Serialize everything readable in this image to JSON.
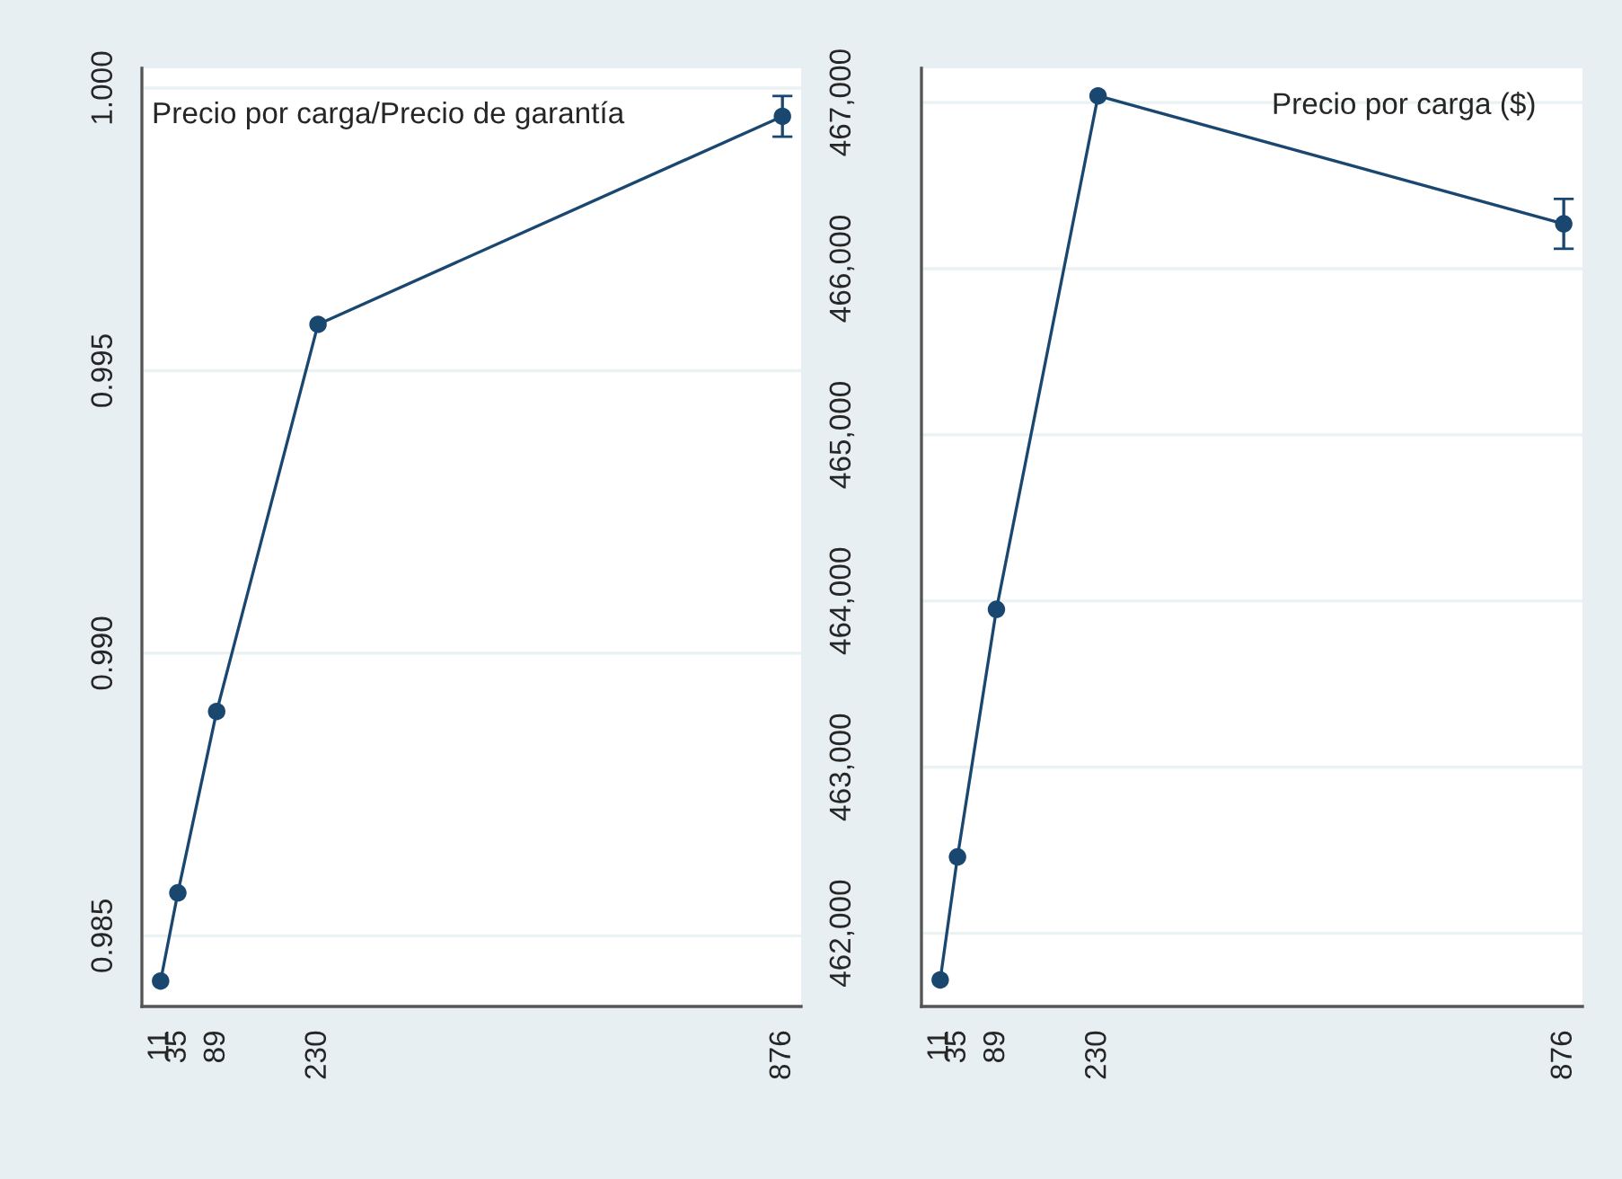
{
  "chart_data": [
    {
      "type": "line",
      "title": "Precio por carga/Precio de garantía",
      "x": [
        11,
        35,
        89,
        230,
        876
      ],
      "series": [
        {
          "color": "#1a476f",
          "values": [
            0.9842,
            0.98576,
            0.98897,
            0.99582,
            0.9995
          ],
          "errors": [
            null,
            null,
            null,
            null,
            0.00036
          ]
        }
      ],
      "xlim": [
        -15,
        902
      ],
      "xticks": [
        11,
        35,
        89,
        230,
        876
      ],
      "ylim": [
        0.98375,
        1.00035
      ],
      "yticks": [
        {
          "value": 0.985,
          "label": "0.985"
        },
        {
          "value": 0.99,
          "label": "0.990"
        },
        {
          "value": 0.995,
          "label": "0.995"
        },
        {
          "value": 1.0,
          "label": "1.000"
        }
      ],
      "grid": "y",
      "marker": "circle",
      "line_style": "solid",
      "legend": false
    },
    {
      "type": "line",
      "title": "Precio por carga ($)",
      "x": [
        11,
        35,
        89,
        230,
        876
      ],
      "series": [
        {
          "color": "#1a476f",
          "values": [
            461720,
            462460,
            463950,
            467040,
            466270
          ],
          "errors": [
            null,
            null,
            null,
            null,
            150
          ]
        }
      ],
      "xlim": [
        -15,
        902
      ],
      "xticks": [
        11,
        35,
        89,
        230,
        876
      ],
      "ylim": [
        461560,
        467206
      ],
      "yticks": [
        {
          "value": 462000,
          "label": "462,000"
        },
        {
          "value": 463000,
          "label": "463,000"
        },
        {
          "value": 464000,
          "label": "464,000"
        },
        {
          "value": 465000,
          "label": "465,000"
        },
        {
          "value": 466000,
          "label": "466,000"
        },
        {
          "value": 467000,
          "label": "467,000"
        }
      ],
      "grid": "y",
      "marker": "circle",
      "line_style": "solid",
      "legend": false
    }
  ]
}
